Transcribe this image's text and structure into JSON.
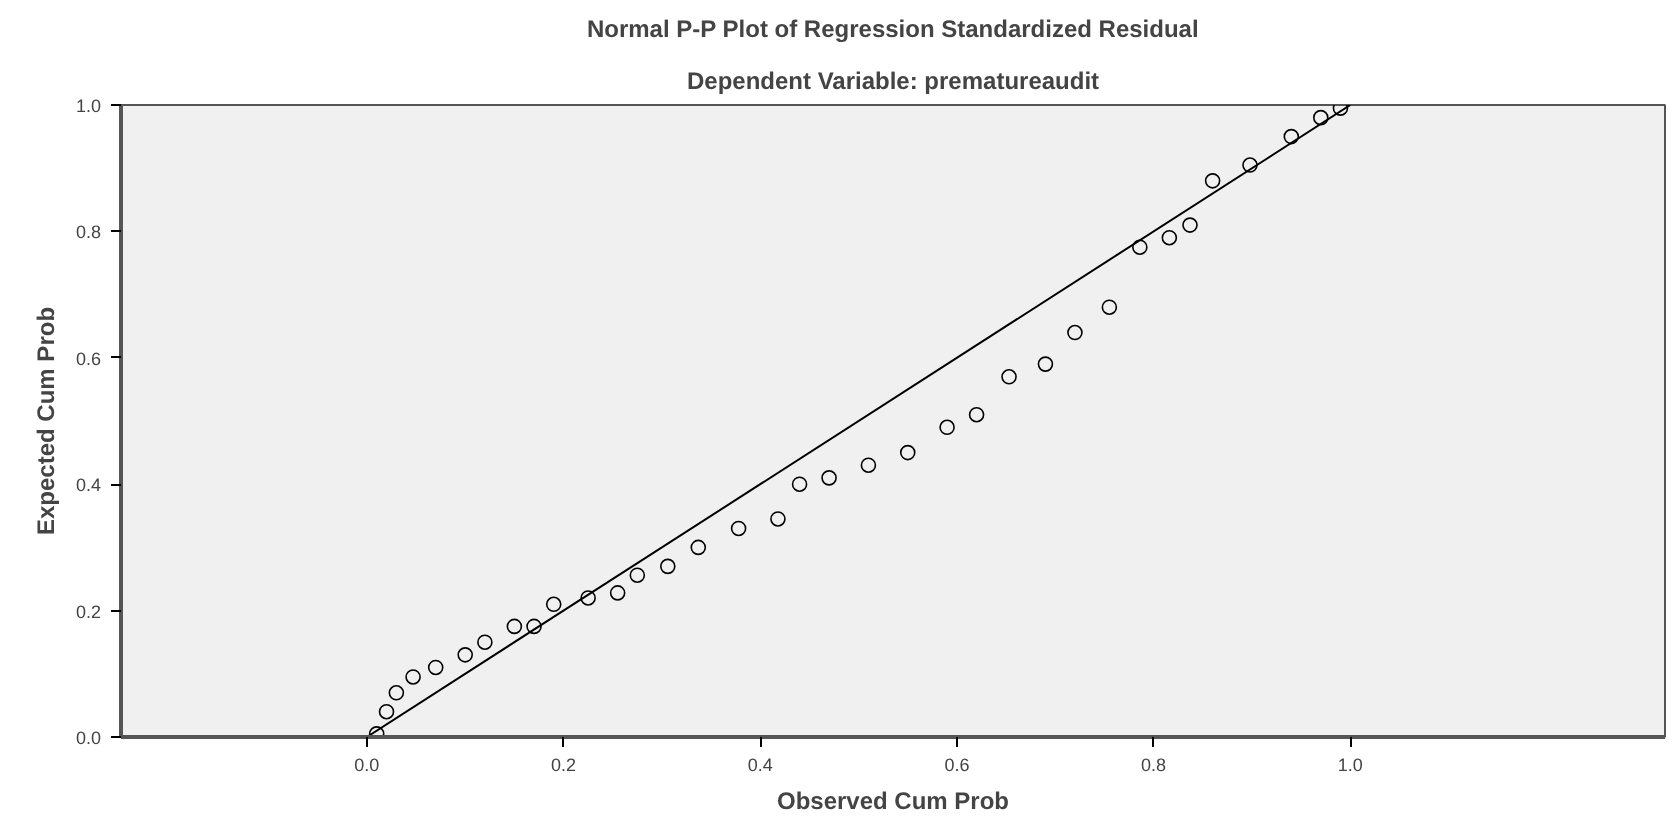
{
  "chart_data": {
    "type": "scatter",
    "title": "Normal P-P Plot of Regression Standardized Residual",
    "subtitle": "Dependent Variable: prematureaudit",
    "xlabel": "Observed Cum Prob",
    "ylabel": "Expected Cum Prob",
    "xlim": [
      -0.25,
      1.32
    ],
    "ylim": [
      0,
      1
    ],
    "xticks": [
      {
        "value": 0,
        "label": "0.0"
      },
      {
        "value": 0.2,
        "label": "0.2"
      },
      {
        "value": 0.4,
        "label": "0.4"
      },
      {
        "value": 0.6,
        "label": "0.6"
      },
      {
        "value": 0.8,
        "label": "0.8"
      },
      {
        "value": 1,
        "label": "1.0"
      }
    ],
    "yticks": [
      {
        "value": 0,
        "label": "0.0"
      },
      {
        "value": 0.2,
        "label": "0.2"
      },
      {
        "value": 0.4,
        "label": "0.4"
      },
      {
        "value": 0.6,
        "label": "0.6"
      },
      {
        "value": 0.8,
        "label": "0.8"
      },
      {
        "value": 1,
        "label": "1.0"
      }
    ],
    "grid": false,
    "series": [
      {
        "marker": "circle",
        "color": "#000000",
        "x": [
          0.01,
          0.02,
          0.03,
          0.047,
          0.07,
          0.1,
          0.12,
          0.15,
          0.17,
          0.19,
          0.225,
          0.255,
          0.275,
          0.306,
          0.337,
          0.378,
          0.418,
          0.44,
          0.47,
          0.51,
          0.55,
          0.59,
          0.62,
          0.653,
          0.69,
          0.72,
          0.755,
          0.786,
          0.816,
          0.837,
          0.86,
          0.898,
          0.94,
          0.97,
          0.99
        ],
        "values": [
          0.005,
          0.04,
          0.07,
          0.095,
          0.11,
          0.13,
          0.15,
          0.175,
          0.175,
          0.21,
          0.22,
          0.228,
          0.256,
          0.27,
          0.3,
          0.33,
          0.345,
          0.4,
          0.41,
          0.43,
          0.45,
          0.49,
          0.51,
          0.57,
          0.59,
          0.64,
          0.68,
          0.775,
          0.79,
          0.81,
          0.88,
          0.905,
          0.95,
          0.98,
          0.995
        ]
      },
      {
        "type": "line",
        "color": "#000000",
        "x": [
          0,
          1
        ],
        "values": [
          0,
          1
        ]
      }
    ]
  }
}
